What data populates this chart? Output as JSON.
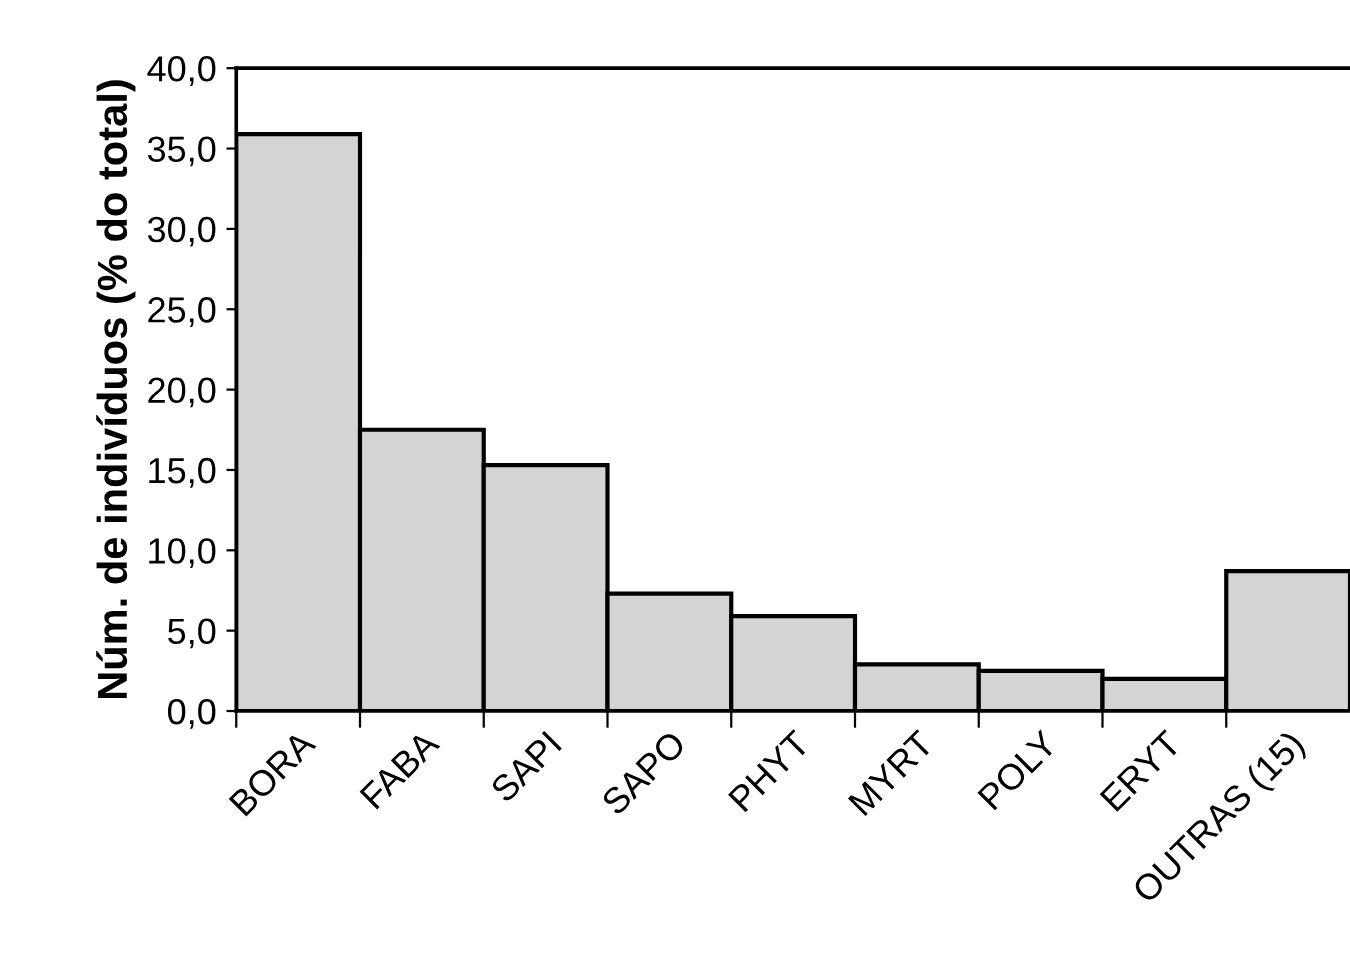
{
  "chart_data": {
    "type": "bar",
    "ylabel": "Núm. de indivíduos (% do total)",
    "categories": [
      "BORA",
      "FABA",
      "SAPI",
      "SAPO",
      "PHYT",
      "MYRT",
      "POLY",
      "ERYT",
      "OUTRAS (15)"
    ],
    "values": [
      35.9,
      17.5,
      15.3,
      7.3,
      5.9,
      2.9,
      2.5,
      2.0,
      8.7
    ],
    "color": "#d4d4d4",
    "ylim": [
      0,
      40
    ],
    "yticks": [
      {
        "value": 0,
        "label": "0,0"
      },
      {
        "value": 5,
        "label": "5,0"
      },
      {
        "value": 10,
        "label": "10,0"
      },
      {
        "value": 15,
        "label": "15,0"
      },
      {
        "value": 20,
        "label": "20,0"
      },
      {
        "value": 25,
        "label": "25,0"
      },
      {
        "value": 30,
        "label": "30,0"
      },
      {
        "value": 35,
        "label": "35,0"
      },
      {
        "value": 40,
        "label": "40,0"
      }
    ],
    "grid": false
  }
}
